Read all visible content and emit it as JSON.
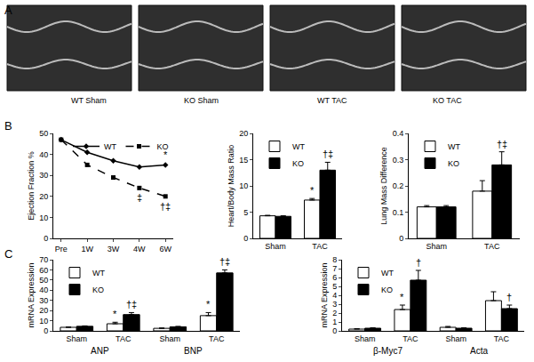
{
  "panel_labels": [
    "A",
    "B",
    "C"
  ],
  "echo_images": {
    "labels": [
      "WT Sham",
      "KO Sham",
      "WT TAC",
      "KO TAC"
    ]
  },
  "chart_data": [
    {
      "type": "line",
      "y_label": "Ejection Fraction %",
      "categories": [
        "Pre",
        "1W",
        "3W",
        "4W",
        "6W"
      ],
      "series": [
        {
          "name": "WT",
          "color": "#000000",
          "line_style": "solid",
          "marker": "diamond",
          "values": [
            47,
            41,
            37,
            34,
            35
          ]
        },
        {
          "name": "KO",
          "color": "#000000",
          "line_style": "dash",
          "marker": "square",
          "values": [
            47,
            35,
            29,
            24,
            20
          ]
        }
      ],
      "ylim": [
        0,
        50
      ],
      "yticks": [
        0,
        10,
        20,
        30,
        40,
        50
      ],
      "grid": false,
      "legend": "upper right",
      "annotations": [
        {
          "category": 4,
          "series": "WT",
          "text": "*"
        },
        {
          "category": 3,
          "series": "KO",
          "text": "‡"
        },
        {
          "category": 4,
          "series": "KO",
          "text": "†‡"
        }
      ]
    },
    {
      "type": "bar",
      "y_label": "Heart/Body Mass Ratio",
      "categories": [
        "Sham",
        "TAC"
      ],
      "series": [
        {
          "name": "WT",
          "color": "#ffffff",
          "values": [
            4.3,
            7.3
          ],
          "errors": [
            0.1,
            0.3
          ]
        },
        {
          "name": "KO",
          "color": "#000000",
          "values": [
            4.2,
            13
          ],
          "errors": [
            0.1,
            1.5
          ]
        }
      ],
      "ylim": [
        0,
        20
      ],
      "yticks": [
        0,
        5,
        10,
        15,
        20
      ],
      "grid": false,
      "legend": "upper left",
      "annotations": [
        {
          "category": 1,
          "series": "WT",
          "text": "*"
        },
        {
          "category": 1,
          "series": "KO",
          "text": "†‡"
        }
      ]
    },
    {
      "type": "bar",
      "y_label": "Lung Mass Difference",
      "categories": [
        "Sham",
        "TAC"
      ],
      "series": [
        {
          "name": "WT",
          "color": "#ffffff",
          "values": [
            0.12,
            0.18
          ],
          "errors": [
            0.005,
            0.04
          ]
        },
        {
          "name": "KO",
          "color": "#000000",
          "values": [
            0.12,
            0.28
          ],
          "errors": [
            0.005,
            0.05
          ]
        }
      ],
      "ylim": [
        0,
        0.4
      ],
      "yticks": [
        0,
        0.1,
        0.2,
        0.3,
        0.4
      ],
      "grid": false,
      "legend": "upper left",
      "annotations": [
        {
          "category": 1,
          "series": "KO",
          "text": "†‡"
        }
      ]
    },
    {
      "type": "bar",
      "y_label": "mRNA Expression",
      "categories": [
        "Sham",
        "TAC",
        "Sham",
        "TAC"
      ],
      "groups": [
        "ANP",
        "BNP"
      ],
      "series": [
        {
          "name": "WT",
          "color": "#ffffff",
          "values": [
            3.5,
            7,
            2.5,
            15
          ],
          "errors": [
            0.3,
            1.5,
            0.3,
            3
          ]
        },
        {
          "name": "KO",
          "color": "#000000",
          "values": [
            4.5,
            16,
            4,
            57
          ],
          "errors": [
            0.4,
            2,
            0.4,
            3
          ]
        }
      ],
      "ylim": [
        0,
        70
      ],
      "yticks": [
        0,
        10,
        20,
        30,
        40,
        50,
        60,
        70
      ],
      "grid": false,
      "legend": "upper left",
      "annotations": [
        {
          "category": 1,
          "series": "WT",
          "text": "*"
        },
        {
          "category": 1,
          "series": "KO",
          "text": "†‡"
        },
        {
          "category": 3,
          "series": "WT",
          "text": "*"
        },
        {
          "category": 3,
          "series": "KO",
          "text": "†‡"
        }
      ]
    },
    {
      "type": "bar",
      "y_label": "mRNA Expression",
      "categories": [
        "Sham",
        "TAC",
        "Sham",
        "TAC"
      ],
      "groups": [
        "β-Myc7",
        "Acta"
      ],
      "series": [
        {
          "name": "WT",
          "color": "#ffffff",
          "values": [
            0.2,
            2.4,
            0.4,
            3.4
          ],
          "errors": [
            0.05,
            0.5,
            0.1,
            1.0
          ]
        },
        {
          "name": "KO",
          "color": "#000000",
          "values": [
            0.3,
            5.7,
            0.3,
            2.5
          ],
          "errors": [
            0.05,
            1.1,
            0.05,
            0.4
          ]
        }
      ],
      "ylim": [
        0,
        8
      ],
      "yticks": [
        0,
        1,
        2,
        3,
        4,
        5,
        6,
        7,
        8
      ],
      "grid": false,
      "legend": "upper left",
      "annotations": [
        {
          "category": 1,
          "series": "WT",
          "text": "*"
        },
        {
          "category": 1,
          "series": "KO",
          "text": "†"
        },
        {
          "category": 3,
          "series": "KO",
          "text": "†"
        }
      ]
    }
  ]
}
